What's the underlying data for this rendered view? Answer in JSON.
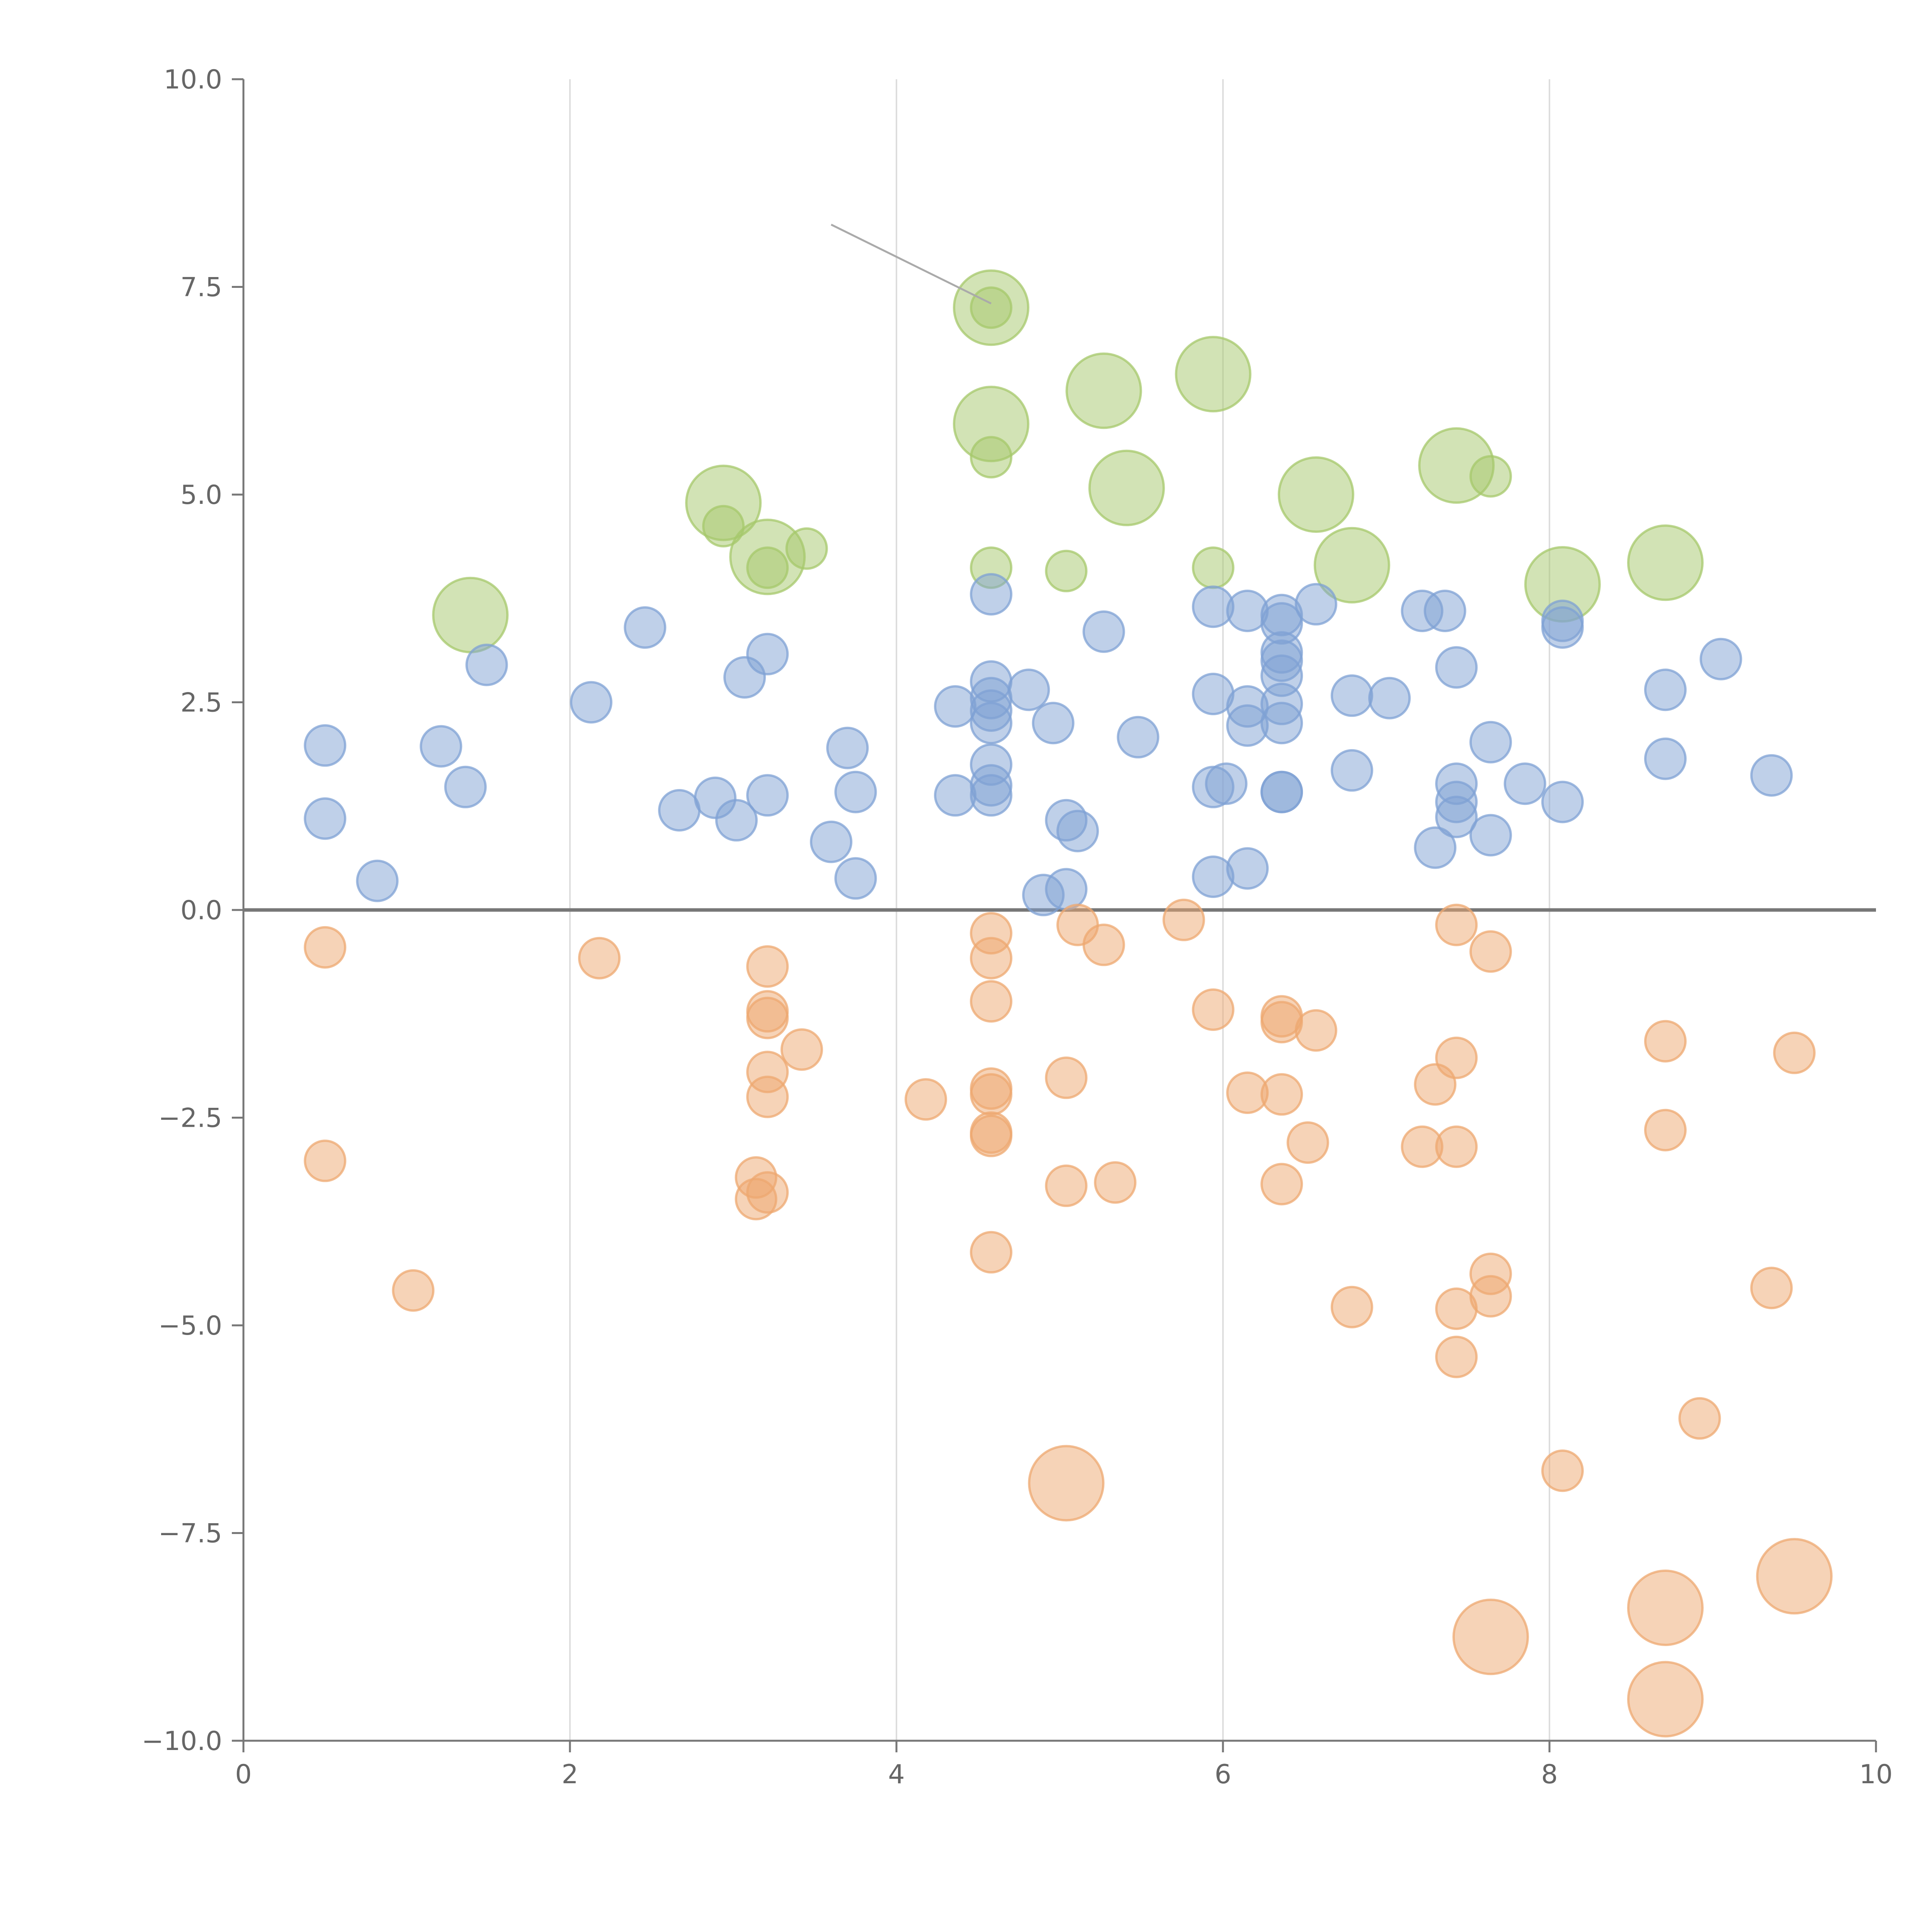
{
  "chart_data": {
    "type": "scatter",
    "title": "",
    "xlabel": "",
    "ylabel": "",
    "xlim": [
      0,
      10
    ],
    "ylim": [
      -10,
      10
    ],
    "x_ticks": [
      "0",
      "2",
      "4",
      "6",
      "8",
      "10"
    ],
    "x_tick_values": [
      0,
      2,
      4,
      6,
      8,
      10
    ],
    "y_ticks": [
      "10.0",
      "7.5",
      "5.0",
      "2.5",
      "0.0",
      "−2.5",
      "−5.0",
      "−7.5",
      "−10.0"
    ],
    "y_tick_values": [
      10,
      7.5,
      5,
      2.5,
      0,
      -2.5,
      -5,
      -7.5,
      -10
    ],
    "grid": "vertical",
    "reference_line_y": 0,
    "series": [
      {
        "name": "green",
        "color": "#a6c86b",
        "points": [
          {
            "x": 1.39,
            "y": 3.55,
            "s": "L"
          },
          {
            "x": 2.94,
            "y": 4.9,
            "s": "L"
          },
          {
            "x": 2.94,
            "y": 4.62,
            "s": "S"
          },
          {
            "x": 3.21,
            "y": 4.25,
            "s": "L"
          },
          {
            "x": 3.21,
            "y": 4.12,
            "s": "S"
          },
          {
            "x": 3.45,
            "y": 4.35,
            "s": "S"
          },
          {
            "x": 4.58,
            "y": 7.25,
            "s": "L"
          },
          {
            "x": 4.58,
            "y": 7.25,
            "s": "S"
          },
          {
            "x": 4.58,
            "y": 5.85,
            "s": "L"
          },
          {
            "x": 4.58,
            "y": 5.45,
            "s": "S"
          },
          {
            "x": 4.58,
            "y": 4.12,
            "s": "S"
          },
          {
            "x": 5.04,
            "y": 4.08,
            "s": "S"
          },
          {
            "x": 5.27,
            "y": 6.25,
            "s": "L"
          },
          {
            "x": 5.41,
            "y": 5.08,
            "s": "L"
          },
          {
            "x": 5.94,
            "y": 6.45,
            "s": "L"
          },
          {
            "x": 5.94,
            "y": 4.12,
            "s": "S"
          },
          {
            "x": 6.57,
            "y": 5.0,
            "s": "L"
          },
          {
            "x": 6.79,
            "y": 4.15,
            "s": "L"
          },
          {
            "x": 7.43,
            "y": 5.35,
            "s": "L"
          },
          {
            "x": 7.64,
            "y": 5.22,
            "s": "S"
          },
          {
            "x": 8.08,
            "y": 3.92,
            "s": "L"
          },
          {
            "x": 8.71,
            "y": 4.18,
            "s": "L"
          }
        ]
      },
      {
        "name": "blue",
        "color": "#7fa1d4",
        "points": [
          {
            "x": 0.5,
            "y": 1.98
          },
          {
            "x": 0.5,
            "y": 1.1
          },
          {
            "x": 0.82,
            "y": 0.35
          },
          {
            "x": 1.21,
            "y": 1.97
          },
          {
            "x": 1.36,
            "y": 1.48
          },
          {
            "x": 1.49,
            "y": 2.95
          },
          {
            "x": 2.13,
            "y": 2.5
          },
          {
            "x": 2.46,
            "y": 3.4
          },
          {
            "x": 2.67,
            "y": 1.2
          },
          {
            "x": 2.89,
            "y": 1.35
          },
          {
            "x": 3.02,
            "y": 1.08
          },
          {
            "x": 3.07,
            "y": 2.8
          },
          {
            "x": 3.21,
            "y": 3.08
          },
          {
            "x": 3.21,
            "y": 1.38
          },
          {
            "x": 3.6,
            "y": 0.82
          },
          {
            "x": 3.7,
            "y": 1.95
          },
          {
            "x": 3.75,
            "y": 1.42
          },
          {
            "x": 3.75,
            "y": 0.38
          },
          {
            "x": 4.36,
            "y": 2.45
          },
          {
            "x": 4.36,
            "y": 1.38
          },
          {
            "x": 4.58,
            "y": 3.8
          },
          {
            "x": 4.58,
            "y": 2.75
          },
          {
            "x": 4.58,
            "y": 2.55
          },
          {
            "x": 4.58,
            "y": 2.4
          },
          {
            "x": 4.58,
            "y": 2.25
          },
          {
            "x": 4.58,
            "y": 1.75
          },
          {
            "x": 4.58,
            "y": 1.5
          },
          {
            "x": 4.58,
            "y": 1.38
          },
          {
            "x": 4.81,
            "y": 2.65
          },
          {
            "x": 4.9,
            "y": 0.18
          },
          {
            "x": 4.96,
            "y": 2.25
          },
          {
            "x": 5.04,
            "y": 1.08
          },
          {
            "x": 5.04,
            "y": 0.25
          },
          {
            "x": 5.11,
            "y": 0.95
          },
          {
            "x": 5.27,
            "y": 3.35
          },
          {
            "x": 5.48,
            "y": 2.08
          },
          {
            "x": 5.94,
            "y": 3.65
          },
          {
            "x": 5.94,
            "y": 2.6
          },
          {
            "x": 5.94,
            "y": 1.48
          },
          {
            "x": 5.94,
            "y": 0.4
          },
          {
            "x": 6.02,
            "y": 1.52
          },
          {
            "x": 6.15,
            "y": 3.6
          },
          {
            "x": 6.15,
            "y": 2.45
          },
          {
            "x": 6.15,
            "y": 2.22
          },
          {
            "x": 6.15,
            "y": 0.5
          },
          {
            "x": 6.36,
            "y": 3.55
          },
          {
            "x": 6.36,
            "y": 3.45
          },
          {
            "x": 6.36,
            "y": 3.1
          },
          {
            "x": 6.36,
            "y": 3.0
          },
          {
            "x": 6.36,
            "y": 2.82
          },
          {
            "x": 6.36,
            "y": 2.48
          },
          {
            "x": 6.36,
            "y": 2.25
          },
          {
            "x": 6.36,
            "y": 1.42
          },
          {
            "x": 6.36,
            "y": 1.42
          },
          {
            "x": 6.57,
            "y": 3.68
          },
          {
            "x": 6.79,
            "y": 2.58
          },
          {
            "x": 6.79,
            "y": 1.68
          },
          {
            "x": 7.02,
            "y": 2.55
          },
          {
            "x": 7.22,
            "y": 3.6
          },
          {
            "x": 7.3,
            "y": 0.75
          },
          {
            "x": 7.36,
            "y": 3.6
          },
          {
            "x": 7.43,
            "y": 2.92
          },
          {
            "x": 7.43,
            "y": 1.52
          },
          {
            "x": 7.43,
            "y": 1.3
          },
          {
            "x": 7.43,
            "y": 1.12
          },
          {
            "x": 7.64,
            "y": 2.02
          },
          {
            "x": 7.64,
            "y": 0.9
          },
          {
            "x": 7.85,
            "y": 1.52
          },
          {
            "x": 8.08,
            "y": 3.48
          },
          {
            "x": 8.08,
            "y": 3.4
          },
          {
            "x": 8.08,
            "y": 1.3
          },
          {
            "x": 8.71,
            "y": 2.65
          },
          {
            "x": 8.71,
            "y": 1.82
          },
          {
            "x": 9.05,
            "y": 3.02
          },
          {
            "x": 9.36,
            "y": 1.62
          }
        ]
      },
      {
        "name": "orange",
        "color": "#eda870",
        "points": [
          {
            "x": 0.5,
            "y": -0.45,
            "s": "S"
          },
          {
            "x": 0.5,
            "y": -3.02,
            "s": "S"
          },
          {
            "x": 1.04,
            "y": -4.58,
            "s": "S"
          },
          {
            "x": 2.18,
            "y": -0.58,
            "s": "S"
          },
          {
            "x": 3.14,
            "y": -3.22,
            "s": "S"
          },
          {
            "x": 3.14,
            "y": -3.48,
            "s": "S"
          },
          {
            "x": 3.21,
            "y": -0.68,
            "s": "S"
          },
          {
            "x": 3.21,
            "y": -1.22,
            "s": "S"
          },
          {
            "x": 3.21,
            "y": -1.3,
            "s": "S"
          },
          {
            "x": 3.21,
            "y": -1.95,
            "s": "S"
          },
          {
            "x": 3.21,
            "y": -2.25,
            "s": "S"
          },
          {
            "x": 3.21,
            "y": -3.4,
            "s": "S"
          },
          {
            "x": 3.42,
            "y": -1.68,
            "s": "S"
          },
          {
            "x": 4.18,
            "y": -2.28,
            "s": "S"
          },
          {
            "x": 4.58,
            "y": -0.28,
            "s": "S"
          },
          {
            "x": 4.58,
            "y": -0.58,
            "s": "S"
          },
          {
            "x": 4.58,
            "y": -1.1,
            "s": "S"
          },
          {
            "x": 4.58,
            "y": -2.15,
            "s": "S"
          },
          {
            "x": 4.58,
            "y": -2.22,
            "s": "S"
          },
          {
            "x": 4.58,
            "y": -2.68,
            "s": "S"
          },
          {
            "x": 4.58,
            "y": -2.72,
            "s": "S"
          },
          {
            "x": 4.58,
            "y": -4.12,
            "s": "S"
          },
          {
            "x": 5.04,
            "y": -2.02,
            "s": "S"
          },
          {
            "x": 5.04,
            "y": -3.32,
            "s": "S"
          },
          {
            "x": 5.04,
            "y": -6.9,
            "s": "L"
          },
          {
            "x": 5.11,
            "y": -0.18,
            "s": "S"
          },
          {
            "x": 5.27,
            "y": -0.42,
            "s": "S"
          },
          {
            "x": 5.34,
            "y": -3.28,
            "s": "S"
          },
          {
            "x": 5.76,
            "y": -0.12,
            "s": "S"
          },
          {
            "x": 5.94,
            "y": -1.2,
            "s": "S"
          },
          {
            "x": 6.15,
            "y": -2.2,
            "s": "S"
          },
          {
            "x": 6.36,
            "y": -1.28,
            "s": "S"
          },
          {
            "x": 6.36,
            "y": -1.35,
            "s": "S"
          },
          {
            "x": 6.36,
            "y": -2.22,
            "s": "S"
          },
          {
            "x": 6.36,
            "y": -3.3,
            "s": "S"
          },
          {
            "x": 6.52,
            "y": -2.8,
            "s": "S"
          },
          {
            "x": 6.57,
            "y": -1.45,
            "s": "S"
          },
          {
            "x": 6.79,
            "y": -4.78,
            "s": "S"
          },
          {
            "x": 7.22,
            "y": -2.85,
            "s": "S"
          },
          {
            "x": 7.3,
            "y": -2.1,
            "s": "S"
          },
          {
            "x": 7.43,
            "y": -0.18,
            "s": "S"
          },
          {
            "x": 7.43,
            "y": -1.78,
            "s": "S"
          },
          {
            "x": 7.43,
            "y": -2.85,
            "s": "S"
          },
          {
            "x": 7.43,
            "y": -4.8,
            "s": "S"
          },
          {
            "x": 7.43,
            "y": -5.38,
            "s": "S"
          },
          {
            "x": 7.64,
            "y": -0.5,
            "s": "S"
          },
          {
            "x": 7.64,
            "y": -4.38,
            "s": "S"
          },
          {
            "x": 7.64,
            "y": -4.65,
            "s": "S"
          },
          {
            "x": 7.64,
            "y": -8.75,
            "s": "L"
          },
          {
            "x": 8.08,
            "y": -6.75,
            "s": "S"
          },
          {
            "x": 8.71,
            "y": -1.58,
            "s": "S"
          },
          {
            "x": 8.71,
            "y": -2.65,
            "s": "S"
          },
          {
            "x": 8.71,
            "y": -8.4,
            "s": "L"
          },
          {
            "x": 8.71,
            "y": -9.5,
            "s": "L"
          },
          {
            "x": 8.92,
            "y": -6.12,
            "s": "S"
          },
          {
            "x": 9.36,
            "y": -4.55,
            "s": "S"
          },
          {
            "x": 9.5,
            "y": -1.72,
            "s": "S"
          },
          {
            "x": 9.5,
            "y": -8.02,
            "s": "L"
          }
        ]
      }
    ]
  }
}
